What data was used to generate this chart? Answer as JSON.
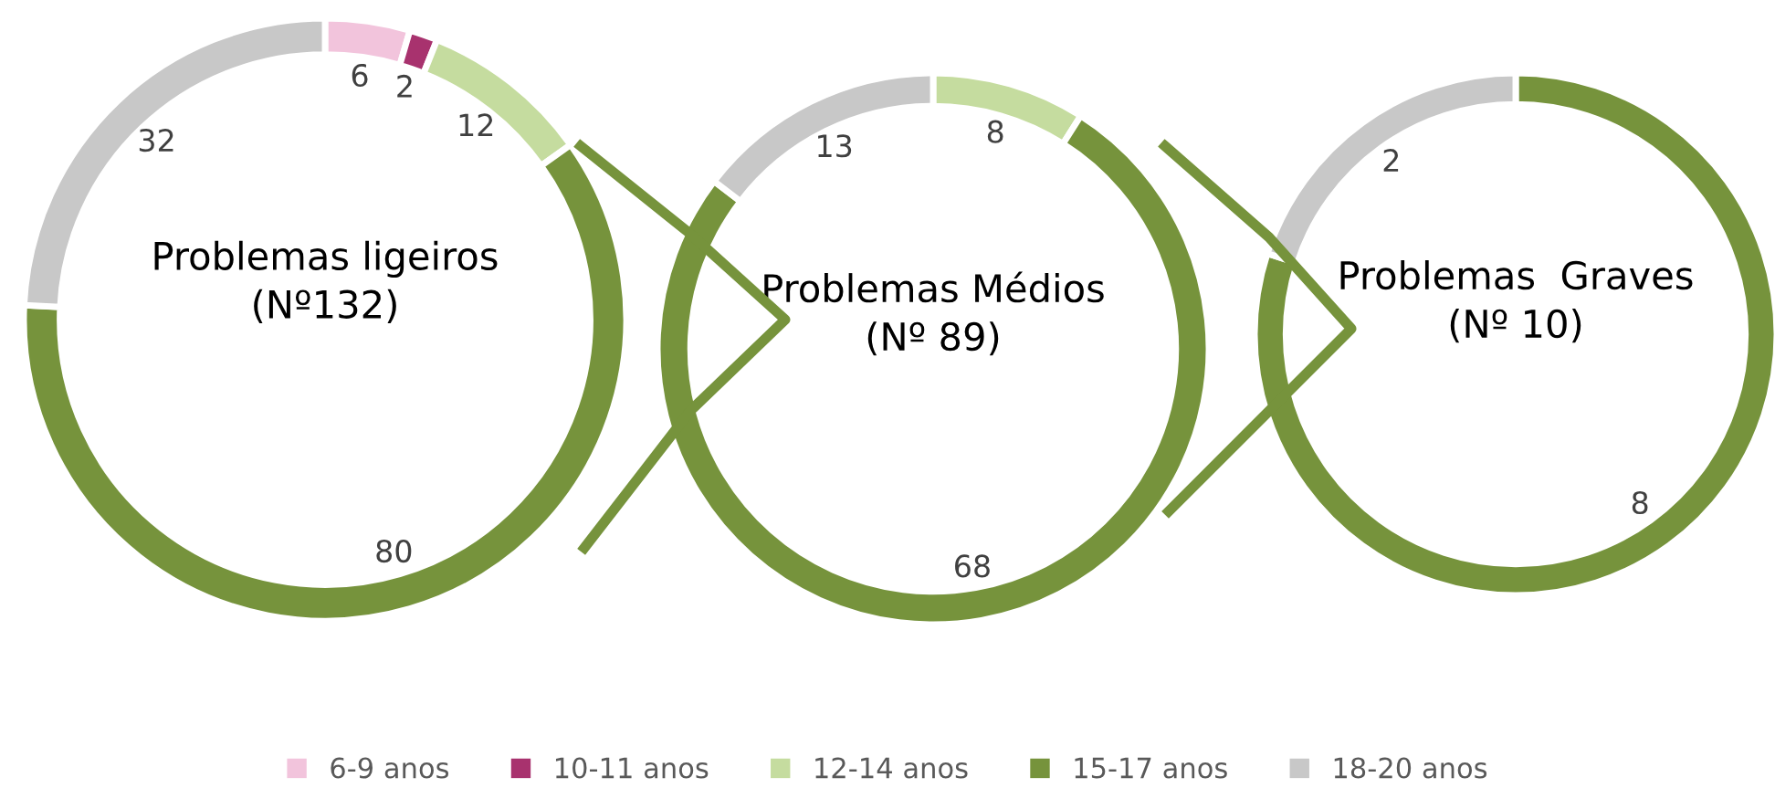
{
  "chart_data": [
    {
      "type": "donut",
      "title": "Problemas ligeiros\n(Nº132)",
      "categories": [
        "6-9 anos",
        "10-11 anos",
        "12-14 anos",
        "15-17 anos",
        "18-20 anos"
      ],
      "values": [
        6,
        2,
        12,
        80,
        32
      ],
      "colors": [
        "#f2c4dc",
        "#a8326e",
        "#c5dc9f",
        "#76933c",
        "#c8c8c8"
      ],
      "data_labels": true,
      "legend": "bottom"
    },
    {
      "type": "donut",
      "title": "Problemas Médios\n(Nº 89)",
      "values": [
        8,
        68,
        13
      ],
      "colors": [
        "#c5dc9f",
        "#76933c",
        "#c8c8c8"
      ],
      "data_labels": true
    },
    {
      "type": "donut",
      "title": "Problemas  Graves\n(Nº 10)",
      "values": [
        8,
        2
      ],
      "colors": [
        "#76933c",
        "#c8c8c8"
      ],
      "data_labels": true
    }
  ]
}
